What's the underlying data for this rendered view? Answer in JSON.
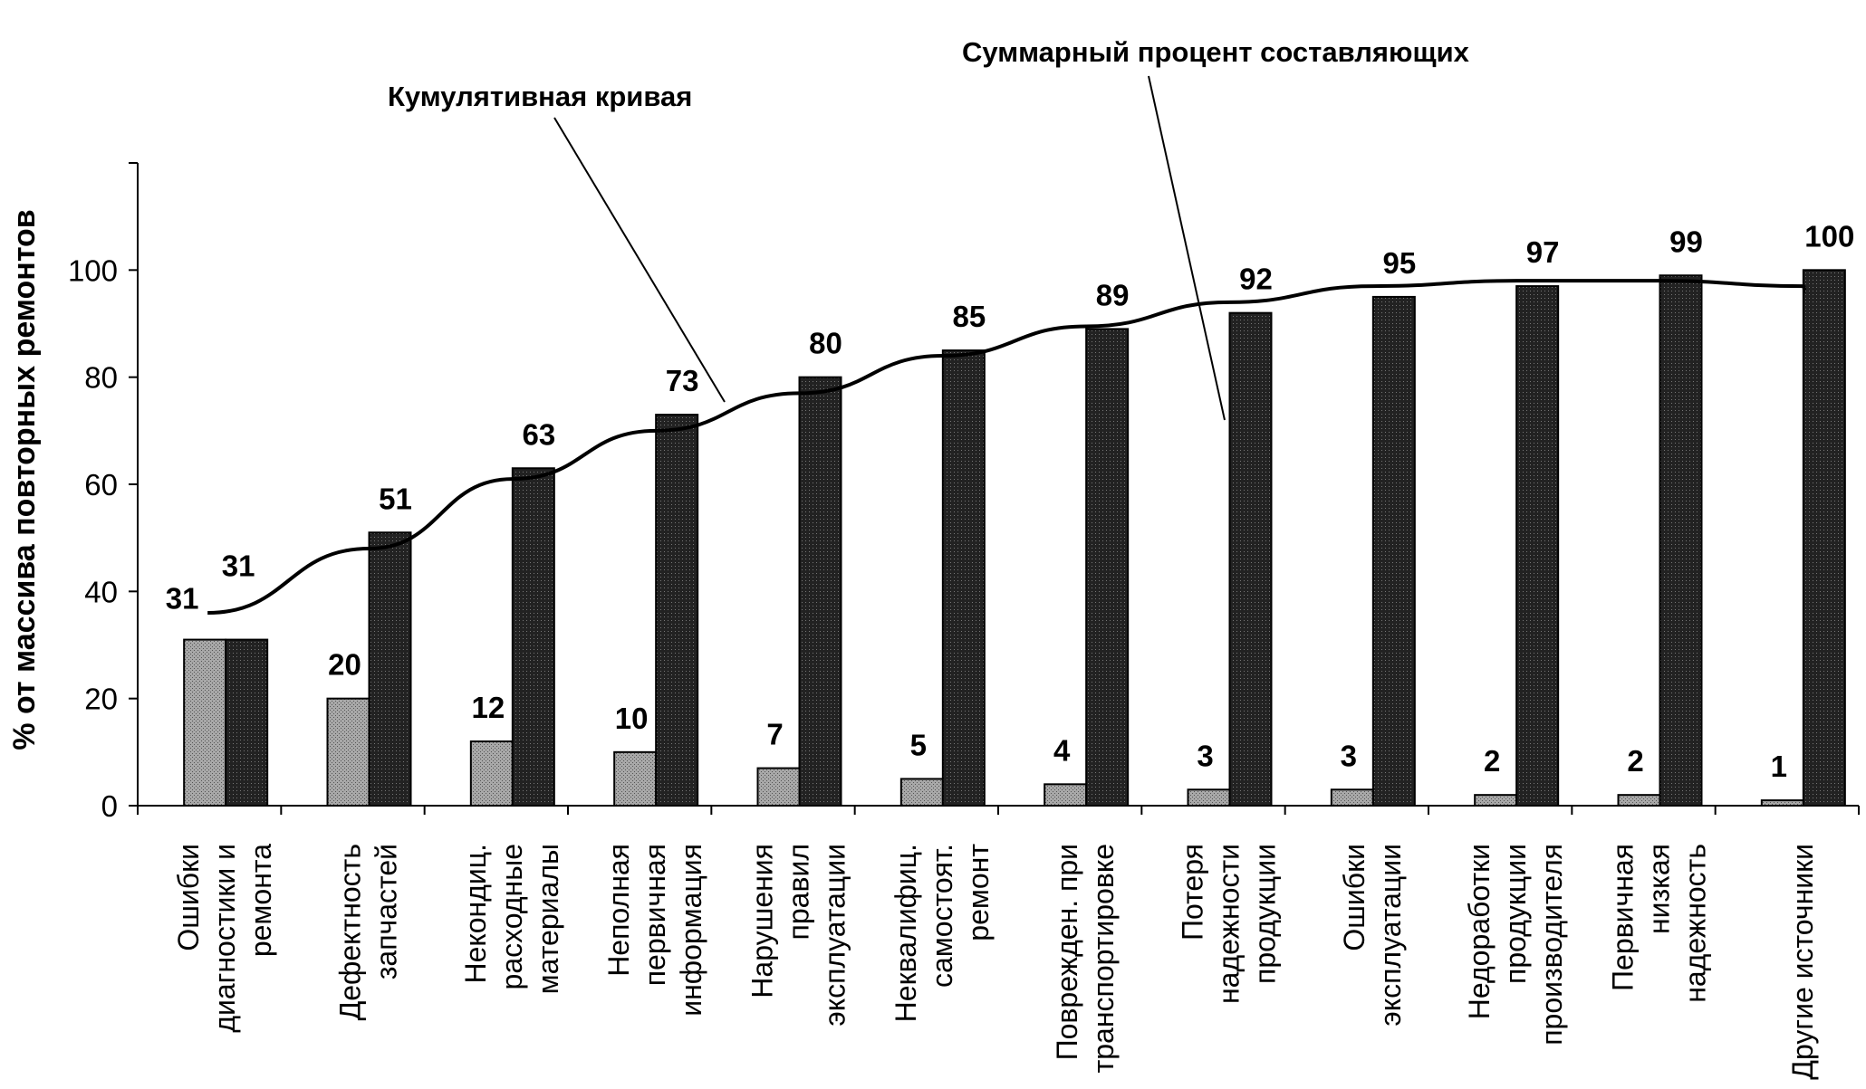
{
  "chart_data": {
    "type": "bar",
    "ylabel": "% от массива повторных ремонтов",
    "ylim": [
      0,
      120
    ],
    "yticks": [
      0,
      20,
      40,
      60,
      80,
      100
    ],
    "grid": false,
    "categories": [
      [
        "Ошибки",
        "диагностики и",
        "ремонта"
      ],
      [
        "Дефектность",
        "запчастей"
      ],
      [
        "Некондиц.",
        "расходные",
        "материалы"
      ],
      [
        "Неполная",
        "первичная",
        "информация"
      ],
      [
        "Нарушения",
        "правил",
        "эксплуатации"
      ],
      [
        "Неквалифиц.",
        "самостоят.",
        "ремонт"
      ],
      [
        "Поврежден. при",
        "транспортировке"
      ],
      [
        "Потеря",
        "надежности",
        "продукции"
      ],
      [
        "Ошибки",
        "эксплуатации"
      ],
      [
        "Недоработки",
        "продукции",
        "производителя"
      ],
      [
        "Первичная",
        "низкая",
        "надежность"
      ],
      [
        "Другие источники"
      ]
    ],
    "series": [
      {
        "values": [
          31,
          20,
          12,
          10,
          7,
          5,
          4,
          3,
          3,
          2,
          2,
          1
        ],
        "color": "#a8a8a8"
      },
      {
        "values": [
          31,
          51,
          63,
          73,
          80,
          85,
          89,
          92,
          95,
          97,
          99,
          100
        ],
        "color": "#222222"
      }
    ],
    "value_labels": {
      "components": [
        "31",
        "20",
        "12",
        "10",
        "7",
        "5",
        "4",
        "3",
        "3",
        "2",
        "2",
        "1"
      ],
      "cumulative": [
        "31",
        "51",
        "63",
        "73",
        "80",
        "85",
        "89",
        "92",
        "95",
        "97",
        "99",
        "100"
      ]
    },
    "curve": [
      36,
      48,
      61,
      70,
      77,
      84,
      89.5,
      94,
      97,
      98,
      98,
      97,
      96
    ],
    "annotations": {
      "curve_label": "Кумулятивная кривая",
      "sum_label": "Суммарный процент составляющих"
    }
  }
}
